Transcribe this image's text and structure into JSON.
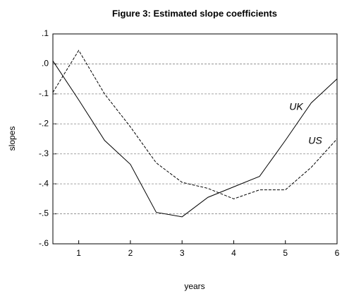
{
  "chart_data": {
    "type": "line",
    "title": "Figure 3: Estimated slope coefficients",
    "xlabel": "years",
    "ylabel": "slopes",
    "x": [
      0.5,
      1,
      1.5,
      2,
      2.5,
      3,
      3.5,
      4,
      4.5,
      5,
      5.5,
      6
    ],
    "xlim": [
      0.5,
      6
    ],
    "xticks": [
      1,
      2,
      3,
      4,
      5,
      6
    ],
    "ylim": [
      -0.6,
      0.1
    ],
    "yticks": [
      {
        "value": -0.6,
        "label": "-.6"
      },
      {
        "value": -0.5,
        "label": "-.5"
      },
      {
        "value": -0.4,
        "label": "-.4"
      },
      {
        "value": -0.3,
        "label": "-.3"
      },
      {
        "value": -0.2,
        "label": "-.2"
      },
      {
        "value": -0.1,
        "label": "-.1"
      },
      {
        "value": 0,
        "label": ".0"
      },
      {
        "value": 0.1,
        "label": ".1"
      }
    ],
    "grid": true,
    "series": [
      {
        "name": "UK",
        "color": "#000000",
        "dash": "solid",
        "values": [
          0.01,
          -0.12,
          -0.255,
          -0.335,
          -0.495,
          -0.51,
          -0.445,
          -0.41,
          -0.375,
          -0.255,
          -0.13,
          -0.05
        ]
      },
      {
        "name": "US",
        "color": "#000000",
        "dash": "dashed",
        "values": [
          -0.095,
          0.045,
          -0.1,
          -0.21,
          -0.33,
          -0.395,
          -0.415,
          -0.45,
          -0.42,
          -0.42,
          -0.345,
          -0.25
        ]
      }
    ]
  }
}
